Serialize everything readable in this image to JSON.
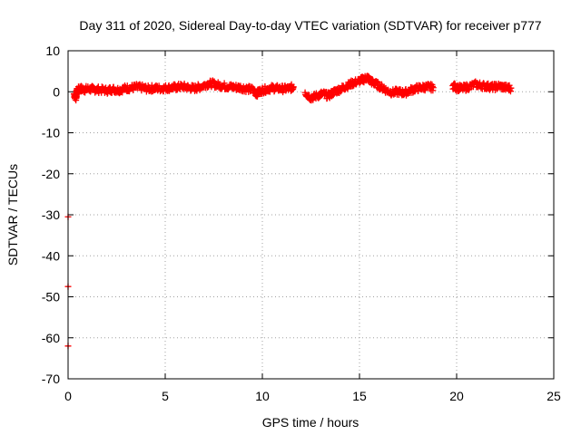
{
  "chart_data": {
    "type": "scatter",
    "title": "Day 311 of 2020, Sidereal Day-to-day VTEC variation (SDTVAR) for receiver p777",
    "xlabel": "GPS time / hours",
    "ylabel": "SDTVAR / TECUs",
    "xlim": [
      0,
      25
    ],
    "ylim": [
      -70,
      10
    ],
    "xticks": [
      0,
      5,
      10,
      15,
      20,
      25
    ],
    "yticks": [
      10,
      0,
      -10,
      -20,
      -30,
      -40,
      -50,
      -60,
      -70
    ],
    "grid": true,
    "grid_style": "dotted",
    "marker": "plus",
    "series": [
      {
        "name": "SDTVAR",
        "color": "#ff0000",
        "points": [
          [
            0.0,
            -30.5
          ],
          [
            0.0,
            -47.5
          ],
          [
            0.0,
            -62.0
          ],
          [
            0.3,
            -0.5
          ],
          [
            0.4,
            -1.5
          ],
          [
            0.45,
            0.0
          ],
          [
            0.6,
            0.8
          ],
          [
            0.8,
            0.5
          ],
          [
            1.0,
            0.7
          ],
          [
            1.3,
            0.6
          ],
          [
            1.6,
            0.5
          ],
          [
            2.0,
            0.3
          ],
          [
            2.3,
            0.6
          ],
          [
            2.6,
            0.4
          ],
          [
            2.9,
            0.8
          ],
          [
            3.2,
            0.9
          ],
          [
            3.5,
            1.1
          ],
          [
            3.8,
            1.0
          ],
          [
            4.1,
            0.7
          ],
          [
            4.4,
            0.9
          ],
          [
            4.7,
            0.8
          ],
          [
            5.0,
            0.9
          ],
          [
            5.3,
            1.0
          ],
          [
            5.6,
            1.1
          ],
          [
            5.9,
            1.3
          ],
          [
            6.2,
            1.0
          ],
          [
            6.5,
            0.8
          ],
          [
            6.8,
            1.2
          ],
          [
            7.1,
            1.8
          ],
          [
            7.4,
            2.0
          ],
          [
            7.7,
            1.6
          ],
          [
            8.0,
            1.4
          ],
          [
            8.3,
            1.2
          ],
          [
            8.6,
            1.1
          ],
          [
            8.9,
            1.0
          ],
          [
            9.2,
            0.7
          ],
          [
            9.5,
            0.5
          ],
          [
            9.7,
            -0.5
          ],
          [
            9.9,
            0.2
          ],
          [
            10.2,
            0.6
          ],
          [
            10.5,
            0.9
          ],
          [
            10.8,
            0.8
          ],
          [
            11.1,
            0.7
          ],
          [
            11.4,
            0.8
          ],
          [
            11.6,
            1.2
          ],
          [
            12.2,
            -0.2
          ],
          [
            12.5,
            -1.5
          ],
          [
            12.8,
            -1.0
          ],
          [
            13.1,
            -0.5
          ],
          [
            13.4,
            -1.0
          ],
          [
            13.7,
            0.0
          ],
          [
            14.0,
            0.6
          ],
          [
            14.3,
            1.3
          ],
          [
            14.6,
            2.0
          ],
          [
            14.9,
            2.5
          ],
          [
            15.2,
            3.0
          ],
          [
            15.4,
            3.5
          ],
          [
            15.6,
            2.5
          ],
          [
            15.8,
            2.0
          ],
          [
            16.1,
            1.2
          ],
          [
            16.4,
            0.3
          ],
          [
            16.7,
            -0.2
          ],
          [
            17.0,
            0.0
          ],
          [
            17.3,
            -0.3
          ],
          [
            17.6,
            0.3
          ],
          [
            17.9,
            0.8
          ],
          [
            18.2,
            1.0
          ],
          [
            18.5,
            1.2
          ],
          [
            18.8,
            1.0
          ],
          [
            19.8,
            1.5
          ],
          [
            20.0,
            1.0
          ],
          [
            20.3,
            0.8
          ],
          [
            20.6,
            1.2
          ],
          [
            21.0,
            1.8
          ],
          [
            21.3,
            1.5
          ],
          [
            21.6,
            1.3
          ],
          [
            21.9,
            1.1
          ],
          [
            22.2,
            1.4
          ],
          [
            22.5,
            1.0
          ],
          [
            22.8,
            0.9
          ]
        ]
      }
    ]
  }
}
